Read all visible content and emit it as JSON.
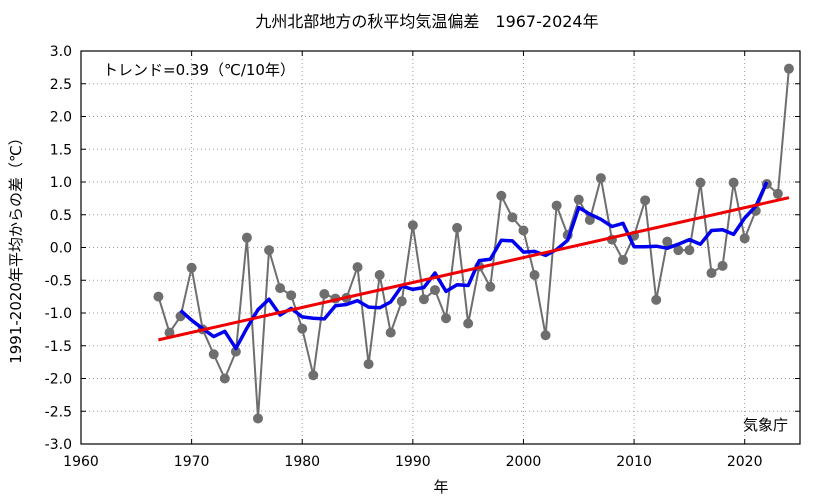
{
  "colors": {
    "anomaly": "#6e6e6e",
    "moving_avg": "#0000ee",
    "trend": "#ee0000",
    "grid": "#9a9a9a"
  },
  "chart_data": {
    "type": "line",
    "title": "九州北部地方の秋平均気温偏差　1967-2024年",
    "xlabel": "年",
    "ylabel": "1991-2020年平均からの差（℃）",
    "trend_text": "トレンド=0.39（℃/10年）",
    "credit": "気象庁",
    "xlim": [
      1960,
      2025
    ],
    "ylim": [
      -3.0,
      3.0
    ],
    "xticks": [
      1960,
      1970,
      1980,
      1990,
      2000,
      2010,
      2020
    ],
    "yticks": [
      3.0,
      2.5,
      2.0,
      1.5,
      1.0,
      0.5,
      0.0,
      -0.5,
      -1.0,
      -1.5,
      -2.0,
      -2.5,
      -3.0
    ],
    "ytick_labels": [
      "3.0",
      "2.5",
      "2.0",
      "1.5",
      "1.0",
      "0.5",
      "0.0",
      "-0.5",
      "-1.0",
      "-1.5",
      "-2.0",
      "-2.5",
      "-3.0"
    ],
    "grid": true,
    "series": [
      {
        "kind": "anomaly",
        "x": [
          1967,
          1968,
          1969,
          1970,
          1971,
          1972,
          1973,
          1974,
          1975,
          1976,
          1977,
          1978,
          1979,
          1980,
          1981,
          1982,
          1983,
          1984,
          1985,
          1986,
          1987,
          1988,
          1989,
          1990,
          1991,
          1992,
          1993,
          1994,
          1995,
          1996,
          1997,
          1998,
          1999,
          2000,
          2001,
          2002,
          2003,
          2004,
          2005,
          2006,
          2007,
          2008,
          2009,
          2010,
          2011,
          2012,
          2013,
          2014,
          2015,
          2016,
          2017,
          2018,
          2019,
          2020,
          2021,
          2022,
          2023,
          2024
        ],
        "y": [
          -0.75,
          -1.3,
          -1.05,
          -0.31,
          -1.25,
          -1.63,
          -2.0,
          -1.59,
          0.15,
          -2.61,
          -0.04,
          -0.62,
          -0.73,
          -1.24,
          -1.95,
          -0.71,
          -0.78,
          -0.77,
          -0.3,
          -1.78,
          -0.42,
          -1.3,
          -0.82,
          0.34,
          -0.79,
          -0.65,
          -1.08,
          0.3,
          -1.16,
          -0.29,
          -0.6,
          0.79,
          0.46,
          0.26,
          -0.42,
          -1.34,
          0.64,
          0.19,
          0.73,
          0.42,
          1.06,
          0.12,
          -0.19,
          0.18,
          0.72,
          -0.8,
          0.09,
          -0.04,
          -0.04,
          0.99,
          -0.39,
          -0.28,
          0.99,
          0.14,
          0.56,
          0.97,
          0.82,
          2.73
        ]
      },
      {
        "kind": "moving_average",
        "x": [
          1969,
          1970,
          1971,
          1972,
          1973,
          1974,
          1975,
          1976,
          1977,
          1978,
          1979,
          1980,
          1981,
          1982,
          1983,
          1984,
          1985,
          1986,
          1987,
          1988,
          1989,
          1990,
          1991,
          1992,
          1993,
          1994,
          1995,
          1996,
          1997,
          1998,
          1999,
          2000,
          2001,
          2002,
          2003,
          2004,
          2005,
          2006,
          2007,
          2008,
          2009,
          2010,
          2011,
          2012,
          2013,
          2014,
          2015,
          2016,
          2017,
          2018,
          2019,
          2020,
          2021,
          2022
        ],
        "y": [
          -0.96,
          -1.11,
          -1.24,
          -1.36,
          -1.28,
          -1.54,
          -1.23,
          -0.95,
          -0.79,
          -1.03,
          -0.93,
          -1.06,
          -1.08,
          -1.09,
          -0.89,
          -0.87,
          -0.81,
          -0.91,
          -0.92,
          -0.83,
          -0.59,
          -0.64,
          -0.61,
          -0.39,
          -0.67,
          -0.57,
          -0.58,
          -0.2,
          -0.18,
          0.11,
          0.1,
          -0.07,
          -0.06,
          -0.12,
          -0.03,
          0.11,
          0.61,
          0.51,
          0.43,
          0.32,
          0.37,
          0.01,
          0.01,
          0.02,
          -0.01,
          0.05,
          0.12,
          0.05,
          0.26,
          0.27,
          0.2,
          0.45,
          0.63,
          1.0
        ]
      },
      {
        "kind": "trend",
        "x": [
          1967,
          2024
        ],
        "y": [
          -1.41,
          0.76
        ]
      }
    ]
  }
}
